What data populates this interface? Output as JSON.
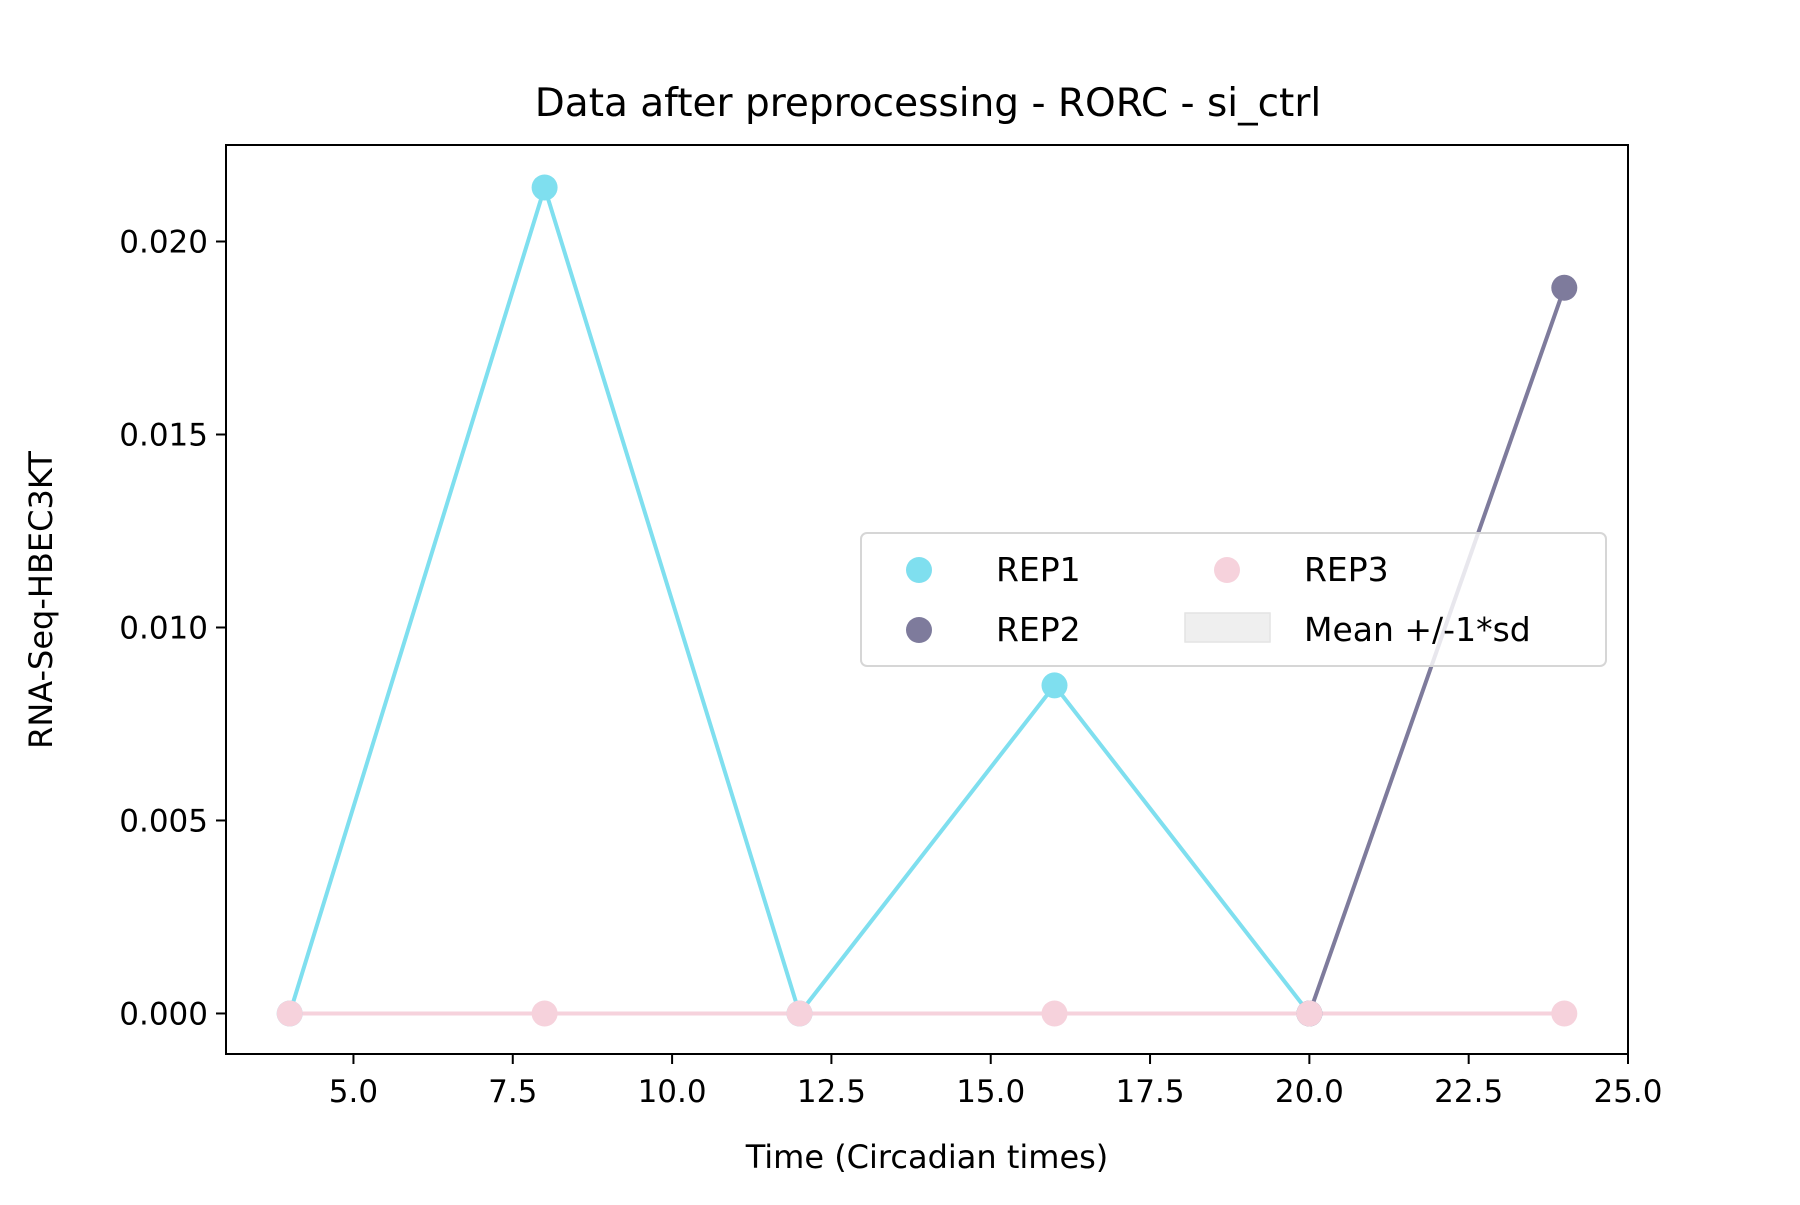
{
  "chart_data": {
    "type": "line",
    "title": "Data after preprocessing - RORC - si_ctrl",
    "xlabel": "Time (Circadian times)",
    "ylabel": "RNA-Seq-HBEC3KT",
    "xlim": [
      3.0,
      25.0
    ],
    "ylim": [
      -0.00105,
      0.0225
    ],
    "x_ticks": [
      5.0,
      7.5,
      10.0,
      12.5,
      15.0,
      17.5,
      20.0,
      22.5,
      25.0
    ],
    "x_tick_labels": [
      "5.0",
      "7.5",
      "10.0",
      "12.5",
      "15.0",
      "17.5",
      "20.0",
      "22.5",
      "25.0"
    ],
    "y_ticks": [
      0.0,
      0.005,
      0.01,
      0.015,
      0.02
    ],
    "y_tick_labels": [
      "0.000",
      "0.005",
      "0.010",
      "0.015",
      "0.020"
    ],
    "grid": false,
    "legend_position": "center-right",
    "legend_columns": 2,
    "series": [
      {
        "name": "REP1",
        "color": "#7fdfef",
        "x": [
          4,
          8,
          12,
          16,
          20
        ],
        "values": [
          0.0,
          0.0214,
          0.0,
          0.0085,
          0.0
        ]
      },
      {
        "name": "REP2",
        "color": "#7e7b9c",
        "x": [
          20,
          24
        ],
        "values": [
          0.0,
          0.0188
        ]
      },
      {
        "name": "REP3",
        "color": "#f6d2dc",
        "x": [
          4,
          8,
          12,
          16,
          20,
          24
        ],
        "values": [
          0.0,
          0.0,
          0.0,
          0.0,
          0.0,
          0.0
        ]
      }
    ],
    "band": {
      "name": "Mean +/-1*sd",
      "color": "#efefef"
    }
  }
}
